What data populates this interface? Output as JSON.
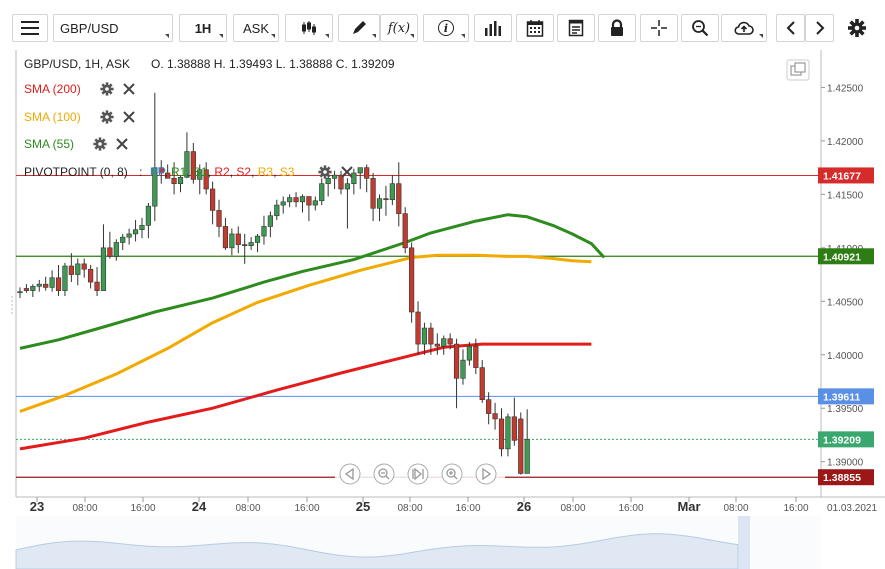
{
  "toolbar": {
    "symbol": "GBP/USD",
    "timeframe": "1H",
    "price_type": "ASK",
    "fx_label": "f(x)",
    "info_label": "i"
  },
  "header": {
    "instrument": "GBP/USD, 1H, ASK",
    "ohlc": "O. 1.38888 H. 1.39493 L. 1.38888 C. 1.39209"
  },
  "indicators": [
    {
      "label": "SMA (200)",
      "color": "#e31b1b"
    },
    {
      "label": "SMA (100)",
      "color": "#f2a900"
    },
    {
      "label": "SMA (55)",
      "color": "#2e8b1d"
    }
  ],
  "pivot": {
    "label": "PIVOTPOINT (0, 8)",
    "sep": ":",
    "items": [
      {
        "t": "PP",
        "c": "#2f7de1"
      },
      {
        "t": "R1",
        "c": "#2e8b1d"
      },
      {
        "t": "S1",
        "c": "#2e8b1d"
      },
      {
        "t": "R2",
        "c": "#e31b1b"
      },
      {
        "t": "S2",
        "c": "#e31b1b"
      },
      {
        "t": "R3",
        "c": "#f2a900"
      },
      {
        "t": "S3",
        "c": "#f2a900"
      }
    ]
  },
  "chart_data": {
    "type": "candlestick",
    "ylim": [
      1.3867,
      1.4285
    ],
    "y_ticks": [
      "1.42500",
      "1.42000",
      "1.41500",
      "1.41000",
      "1.40500",
      "1.40000",
      "1.39500",
      "1.39000"
    ],
    "x_ticks": [
      "23",
      "08:00",
      "16:00",
      "24",
      "08:00",
      "16:00",
      "25",
      "08:00",
      "16:00",
      "26",
      "08:00",
      "16:00",
      "Mar",
      "08:00",
      "16:00"
    ],
    "x_corner_label": "01.03.2021",
    "candles": [
      {
        "o": 1.4058,
        "h": 1.4063,
        "l": 1.4053,
        "c": 1.4059
      },
      {
        "o": 1.4062,
        "h": 1.4066,
        "l": 1.4058,
        "c": 1.406
      },
      {
        "o": 1.406,
        "h": 1.4066,
        "l": 1.4054,
        "c": 1.4064
      },
      {
        "o": 1.4064,
        "h": 1.407,
        "l": 1.4059,
        "c": 1.4066
      },
      {
        "o": 1.4066,
        "h": 1.4073,
        "l": 1.406,
        "c": 1.4063
      },
      {
        "o": 1.4063,
        "h": 1.4079,
        "l": 1.4059,
        "c": 1.4072
      },
      {
        "o": 1.4072,
        "h": 1.4084,
        "l": 1.4055,
        "c": 1.406
      },
      {
        "o": 1.406,
        "h": 1.4086,
        "l": 1.4055,
        "c": 1.4083
      },
      {
        "o": 1.4083,
        "h": 1.4095,
        "l": 1.4068,
        "c": 1.4075
      },
      {
        "o": 1.4075,
        "h": 1.409,
        "l": 1.4065,
        "c": 1.4085
      },
      {
        "o": 1.4085,
        "h": 1.409,
        "l": 1.4072,
        "c": 1.408
      },
      {
        "o": 1.408,
        "h": 1.4084,
        "l": 1.4062,
        "c": 1.4068
      },
      {
        "o": 1.4068,
        "h": 1.4082,
        "l": 1.4055,
        "c": 1.406
      },
      {
        "o": 1.406,
        "h": 1.4122,
        "l": 1.406,
        "c": 1.41
      },
      {
        "o": 1.41,
        "h": 1.4115,
        "l": 1.409,
        "c": 1.4092
      },
      {
        "o": 1.4092,
        "h": 1.4108,
        "l": 1.4088,
        "c": 1.4105
      },
      {
        "o": 1.4105,
        "h": 1.4113,
        "l": 1.4098,
        "c": 1.411
      },
      {
        "o": 1.411,
        "h": 1.4118,
        "l": 1.4103,
        "c": 1.4113
      },
      {
        "o": 1.4113,
        "h": 1.4126,
        "l": 1.4106,
        "c": 1.4117
      },
      {
        "o": 1.4117,
        "h": 1.4128,
        "l": 1.4109,
        "c": 1.4121
      },
      {
        "o": 1.4121,
        "h": 1.4142,
        "l": 1.4109,
        "c": 1.4139
      },
      {
        "o": 1.4139,
        "h": 1.4245,
        "l": 1.4125,
        "c": 1.4175
      },
      {
        "o": 1.4175,
        "h": 1.4182,
        "l": 1.416,
        "c": 1.417
      },
      {
        "o": 1.417,
        "h": 1.4178,
        "l": 1.4165,
        "c": 1.4165
      },
      {
        "o": 1.4165,
        "h": 1.418,
        "l": 1.415,
        "c": 1.416
      },
      {
        "o": 1.416,
        "h": 1.4168,
        "l": 1.4152,
        "c": 1.4166
      },
      {
        "o": 1.4166,
        "h": 1.4208,
        "l": 1.4165,
        "c": 1.419
      },
      {
        "o": 1.419,
        "h": 1.4198,
        "l": 1.416,
        "c": 1.4164
      },
      {
        "o": 1.4164,
        "h": 1.4178,
        "l": 1.415,
        "c": 1.4173
      },
      {
        "o": 1.4173,
        "h": 1.418,
        "l": 1.415,
        "c": 1.4155
      },
      {
        "o": 1.4155,
        "h": 1.4162,
        "l": 1.4122,
        "c": 1.4135
      },
      {
        "o": 1.4135,
        "h": 1.4145,
        "l": 1.411,
        "c": 1.412
      },
      {
        "o": 1.412,
        "h": 1.4128,
        "l": 1.4098,
        "c": 1.41
      },
      {
        "o": 1.41,
        "h": 1.4118,
        "l": 1.4093,
        "c": 1.4113
      },
      {
        "o": 1.4113,
        "h": 1.412,
        "l": 1.4095,
        "c": 1.4103
      },
      {
        "o": 1.4103,
        "h": 1.4113,
        "l": 1.4085,
        "c": 1.4102
      },
      {
        "o": 1.4102,
        "h": 1.411,
        "l": 1.4098,
        "c": 1.4105
      },
      {
        "o": 1.4105,
        "h": 1.4113,
        "l": 1.4096,
        "c": 1.4111
      },
      {
        "o": 1.4111,
        "h": 1.413,
        "l": 1.4103,
        "c": 1.412
      },
      {
        "o": 1.412,
        "h": 1.4134,
        "l": 1.411,
        "c": 1.413
      },
      {
        "o": 1.413,
        "h": 1.4145,
        "l": 1.4126,
        "c": 1.414
      },
      {
        "o": 1.414,
        "h": 1.4148,
        "l": 1.4132,
        "c": 1.4143
      },
      {
        "o": 1.4143,
        "h": 1.415,
        "l": 1.4138,
        "c": 1.4147
      },
      {
        "o": 1.4147,
        "h": 1.4152,
        "l": 1.4138,
        "c": 1.4143
      },
      {
        "o": 1.4143,
        "h": 1.415,
        "l": 1.4133,
        "c": 1.4148
      },
      {
        "o": 1.4148,
        "h": 1.4145,
        "l": 1.4125,
        "c": 1.414
      },
      {
        "o": 1.414,
        "h": 1.4148,
        "l": 1.4135,
        "c": 1.4144
      },
      {
        "o": 1.4144,
        "h": 1.4165,
        "l": 1.414,
        "c": 1.416
      },
      {
        "o": 1.416,
        "h": 1.417,
        "l": 1.4148,
        "c": 1.4165
      },
      {
        "o": 1.4165,
        "h": 1.4172,
        "l": 1.4155,
        "c": 1.4168
      },
      {
        "o": 1.4168,
        "h": 1.4172,
        "l": 1.415,
        "c": 1.4155
      },
      {
        "o": 1.4155,
        "h": 1.4165,
        "l": 1.4118,
        "c": 1.416
      },
      {
        "o": 1.416,
        "h": 1.4174,
        "l": 1.415,
        "c": 1.417
      },
      {
        "o": 1.417,
        "h": 1.4175,
        "l": 1.4155,
        "c": 1.4175
      },
      {
        "o": 1.4175,
        "h": 1.4178,
        "l": 1.4152,
        "c": 1.4165
      },
      {
        "o": 1.4165,
        "h": 1.417,
        "l": 1.4125,
        "c": 1.4137
      },
      {
        "o": 1.4137,
        "h": 1.415,
        "l": 1.4125,
        "c": 1.4146
      },
      {
        "o": 1.4146,
        "h": 1.4158,
        "l": 1.413,
        "c": 1.4145
      },
      {
        "o": 1.4145,
        "h": 1.4168,
        "l": 1.414,
        "c": 1.416
      },
      {
        "o": 1.416,
        "h": 1.418,
        "l": 1.412,
        "c": 1.4132
      },
      {
        "o": 1.4132,
        "h": 1.4138,
        "l": 1.4095,
        "c": 1.41
      },
      {
        "o": 1.41,
        "h": 1.4105,
        "l": 1.403,
        "c": 1.404
      },
      {
        "o": 1.404,
        "h": 1.405,
        "l": 1.4,
        "c": 1.401
      },
      {
        "o": 1.401,
        "h": 1.403,
        "l": 1.4,
        "c": 1.4025
      },
      {
        "o": 1.4025,
        "h": 1.403,
        "l": 1.4,
        "c": 1.401
      },
      {
        "o": 1.401,
        "h": 1.402,
        "l": 1.4,
        "c": 1.4008
      },
      {
        "o": 1.4008,
        "h": 1.4018,
        "l": 1.4,
        "c": 1.4015
      },
      {
        "o": 1.4015,
        "h": 1.402,
        "l": 1.4005,
        "c": 1.401
      },
      {
        "o": 1.401,
        "h": 1.4015,
        "l": 1.395,
        "c": 1.3978
      },
      {
        "o": 1.3978,
        "h": 1.4005,
        "l": 1.3972,
        "c": 1.3995
      },
      {
        "o": 1.3995,
        "h": 1.4012,
        "l": 1.399,
        "c": 1.4008
      },
      {
        "o": 1.4008,
        "h": 1.4015,
        "l": 1.3982,
        "c": 1.3988
      },
      {
        "o": 1.3988,
        "h": 1.3995,
        "l": 1.3955,
        "c": 1.3958
      },
      {
        "o": 1.3958,
        "h": 1.3965,
        "l": 1.3935,
        "c": 1.3945
      },
      {
        "o": 1.3945,
        "h": 1.3955,
        "l": 1.393,
        "c": 1.394
      },
      {
        "o": 1.394,
        "h": 1.395,
        "l": 1.3905,
        "c": 1.3912
      },
      {
        "o": 1.3912,
        "h": 1.3945,
        "l": 1.3905,
        "c": 1.3942
      },
      {
        "o": 1.3942,
        "h": 1.396,
        "l": 1.3915,
        "c": 1.392
      },
      {
        "o": 1.394,
        "h": 1.3946,
        "l": 1.3888,
        "c": 1.3889
      },
      {
        "o": 1.3889,
        "h": 1.3949,
        "l": 1.3889,
        "c": 1.3921
      }
    ],
    "sma55": [
      [
        1.4006,
        0
      ],
      [
        1.4014,
        6
      ],
      [
        1.4026,
        13
      ],
      [
        1.404,
        21
      ],
      [
        1.4053,
        30
      ],
      [
        1.4068,
        38
      ],
      [
        1.4078,
        44
      ],
      [
        1.4089,
        52
      ],
      [
        1.4105,
        60
      ],
      [
        1.4114,
        64
      ],
      [
        1.4125,
        71
      ],
      [
        1.4131,
        76
      ],
      [
        1.4129,
        79
      ],
      [
        1.4121,
        83
      ],
      [
        1.4113,
        86
      ],
      [
        1.4104,
        89
      ],
      [
        1.4091,
        91
      ]
    ],
    "sma100": [
      [
        1.3947,
        0
      ],
      [
        1.3962,
        7
      ],
      [
        1.3982,
        15
      ],
      [
        1.4006,
        23
      ],
      [
        1.403,
        30
      ],
      [
        1.4049,
        37
      ],
      [
        1.4065,
        45
      ],
      [
        1.4079,
        53
      ],
      [
        1.4091,
        61
      ],
      [
        1.4093,
        65
      ],
      [
        1.4093,
        71
      ],
      [
        1.4092,
        76
      ],
      [
        1.4092,
        79
      ],
      [
        1.409,
        83
      ],
      [
        1.4088,
        86
      ],
      [
        1.4087,
        89
      ]
    ],
    "sma200": [
      [
        1.3912,
        0
      ],
      [
        1.3922,
        10
      ],
      [
        1.3937,
        20
      ],
      [
        1.395,
        30
      ],
      [
        1.3967,
        40
      ],
      [
        1.3983,
        50
      ],
      [
        1.3998,
        60
      ],
      [
        1.4007,
        66
      ],
      [
        1.401,
        72
      ],
      [
        1.401,
        78
      ],
      [
        1.401,
        84
      ],
      [
        1.401,
        89
      ]
    ],
    "hlines": [
      {
        "value": 1.41677,
        "label": "1.41677",
        "color": "#d62b2b",
        "lw": 1
      },
      {
        "value": 1.40921,
        "label": "1.40921",
        "color": "#2e7d14",
        "lw": 1.3
      },
      {
        "value": 1.39611,
        "label": "1.39611",
        "color": "#5a8fe6",
        "lw": 1
      },
      {
        "value": 1.39209,
        "label": "1.39209",
        "color": "#3aa86e",
        "lw": 1,
        "dashed": true
      },
      {
        "value": 1.38855,
        "label": "1.38855",
        "color": "#9c1818",
        "lw": 1.3
      }
    ]
  }
}
